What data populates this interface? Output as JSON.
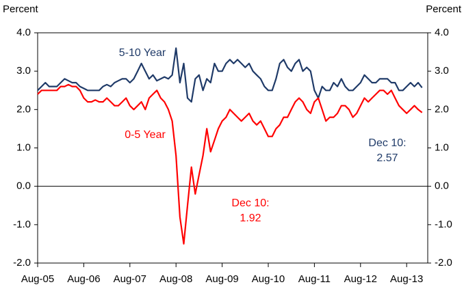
{
  "chart_data": {
    "type": "line",
    "y_label": "Percent",
    "y2_label": "Percent",
    "x": [
      2005.583,
      2005.667,
      2005.75,
      2005.833,
      2005.917,
      2006.0,
      2006.083,
      2006.167,
      2006.25,
      2006.333,
      2006.417,
      2006.5,
      2006.583,
      2006.667,
      2006.75,
      2006.833,
      2006.917,
      2007.0,
      2007.083,
      2007.167,
      2007.25,
      2007.333,
      2007.417,
      2007.5,
      2007.583,
      2007.667,
      2007.75,
      2007.833,
      2007.917,
      2008.0,
      2008.083,
      2008.167,
      2008.25,
      2008.333,
      2008.417,
      2008.5,
      2008.583,
      2008.667,
      2008.75,
      2008.833,
      2008.917,
      2009.0,
      2009.083,
      2009.167,
      2009.25,
      2009.333,
      2009.417,
      2009.5,
      2009.583,
      2009.667,
      2009.75,
      2009.833,
      2009.917,
      2010.0,
      2010.083,
      2010.167,
      2010.25,
      2010.333,
      2010.417,
      2010.5,
      2010.583,
      2010.667,
      2010.75,
      2010.833,
      2010.917,
      2011.0,
      2011.083,
      2011.167,
      2011.25,
      2011.333,
      2011.417,
      2011.5,
      2011.583,
      2011.667,
      2011.75,
      2011.833,
      2011.917,
      2012.0,
      2012.083,
      2012.167,
      2012.25,
      2012.333,
      2012.417,
      2012.5,
      2012.583,
      2012.667,
      2012.75,
      2012.833,
      2012.917,
      2013.0,
      2013.083,
      2013.167,
      2013.25,
      2013.333,
      2013.417,
      2013.5,
      2013.583,
      2013.667,
      2013.75,
      2013.833,
      2013.917
    ],
    "series": [
      {
        "name": "5-10 Year",
        "color": "#1f3a68",
        "values": [
          2.5,
          2.6,
          2.7,
          2.6,
          2.6,
          2.6,
          2.7,
          2.8,
          2.75,
          2.7,
          2.7,
          2.6,
          2.55,
          2.5,
          2.5,
          2.5,
          2.5,
          2.6,
          2.65,
          2.6,
          2.7,
          2.75,
          2.8,
          2.8,
          2.7,
          2.8,
          3.0,
          3.2,
          3.0,
          2.8,
          2.9,
          2.75,
          2.8,
          2.85,
          2.8,
          2.9,
          3.6,
          2.7,
          3.2,
          2.3,
          2.2,
          2.8,
          2.9,
          2.5,
          2.8,
          2.7,
          3.2,
          3.0,
          3.0,
          3.2,
          3.3,
          3.2,
          3.3,
          3.2,
          3.1,
          3.2,
          3.0,
          2.9,
          2.8,
          2.6,
          2.5,
          2.5,
          2.8,
          3.2,
          3.3,
          3.1,
          3.0,
          3.2,
          3.3,
          3.0,
          3.1,
          3.0,
          2.5,
          2.3,
          2.6,
          2.5,
          2.5,
          2.7,
          2.6,
          2.8,
          2.6,
          2.5,
          2.5,
          2.6,
          2.7,
          2.9,
          2.8,
          2.7,
          2.7,
          2.8,
          2.8,
          2.8,
          2.7,
          2.7,
          2.5,
          2.5,
          2.6,
          2.7,
          2.6,
          2.7,
          2.57
        ]
      },
      {
        "name": "0-5 Year",
        "color": "#ff0000",
        "values": [
          2.4,
          2.5,
          2.5,
          2.5,
          2.5,
          2.5,
          2.6,
          2.6,
          2.65,
          2.6,
          2.6,
          2.5,
          2.3,
          2.2,
          2.2,
          2.25,
          2.2,
          2.2,
          2.3,
          2.2,
          2.1,
          2.1,
          2.2,
          2.3,
          2.1,
          2.0,
          2.1,
          2.2,
          2.0,
          2.3,
          2.4,
          2.5,
          2.3,
          2.2,
          2.0,
          1.7,
          0.8,
          -0.8,
          -1.5,
          -0.5,
          0.5,
          -0.2,
          0.3,
          0.8,
          1.5,
          0.9,
          1.2,
          1.5,
          1.7,
          1.8,
          2.0,
          1.9,
          1.8,
          1.7,
          1.8,
          1.9,
          1.7,
          1.6,
          1.7,
          1.5,
          1.3,
          1.3,
          1.5,
          1.6,
          1.8,
          1.8,
          2.0,
          2.2,
          2.3,
          2.2,
          2.0,
          1.9,
          2.2,
          2.3,
          2.0,
          1.7,
          1.8,
          1.8,
          1.9,
          2.1,
          2.1,
          2.0,
          1.8,
          1.9,
          2.1,
          2.3,
          2.2,
          2.3,
          2.4,
          2.5,
          2.5,
          2.4,
          2.5,
          2.3,
          2.1,
          2.0,
          1.9,
          2.0,
          2.1,
          2.0,
          1.92
        ]
      }
    ],
    "annotations": [
      {
        "lines": [
          "5-10 Year"
        ],
        "color": "#1f3a68"
      },
      {
        "lines": [
          "0-5 Year"
        ],
        "color": "#ff0000"
      },
      {
        "lines": [
          "Dec 10:",
          "2.57"
        ],
        "color": "#1f3a68"
      },
      {
        "lines": [
          "Dec 10:",
          "1.92"
        ],
        "color": "#ff0000"
      }
    ],
    "xlim": [
      2005.583,
      2014.04
    ],
    "xticks": [
      {
        "value": 2005.583,
        "label": "Aug-05"
      },
      {
        "value": 2006.583,
        "label": "Aug-06"
      },
      {
        "value": 2007.583,
        "label": "Aug-07"
      },
      {
        "value": 2008.583,
        "label": "Aug-08"
      },
      {
        "value": 2009.583,
        "label": "Aug-09"
      },
      {
        "value": 2010.583,
        "label": "Aug-10"
      },
      {
        "value": 2011.583,
        "label": "Aug-11"
      },
      {
        "value": 2012.583,
        "label": "Aug-12"
      },
      {
        "value": 2013.583,
        "label": "Aug-13"
      }
    ],
    "ylim": [
      -2,
      4
    ],
    "yticks": [
      {
        "value": 4,
        "label": "4.0"
      },
      {
        "value": 3,
        "label": "3.0"
      },
      {
        "value": 2,
        "label": "2.0"
      },
      {
        "value": 1,
        "label": "1.0"
      },
      {
        "value": 0,
        "label": "0.0"
      },
      {
        "value": -1,
        "label": "-1.0"
      },
      {
        "value": -2,
        "label": "-2.0"
      }
    ],
    "y2lim": [
      -2,
      4
    ],
    "y2ticks": [
      {
        "value": 4,
        "label": "4.0"
      },
      {
        "value": 3,
        "label": "3.0"
      },
      {
        "value": 2,
        "label": "2.0"
      },
      {
        "value": 1,
        "label": "1.0"
      },
      {
        "value": 0,
        "label": "0.0"
      },
      {
        "value": -1,
        "label": "-1.0"
      },
      {
        "value": -2,
        "label": "-2.0"
      }
    ],
    "zero_line": true
  }
}
